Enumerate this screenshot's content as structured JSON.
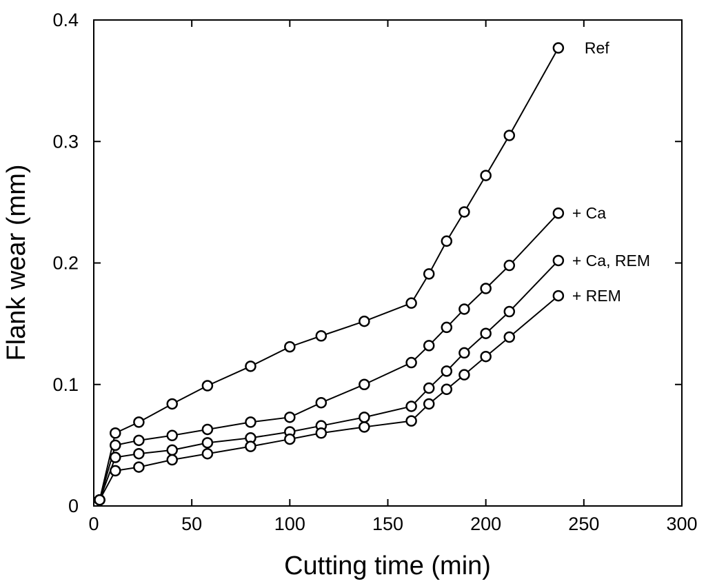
{
  "chart_data": {
    "type": "line",
    "title": "",
    "xlabel": "Cutting time (min)",
    "ylabel": "Flank wear (mm)",
    "xlim": [
      0,
      300
    ],
    "ylim": [
      0,
      0.4
    ],
    "xticks": [
      0,
      50,
      100,
      150,
      200,
      250,
      300
    ],
    "yticks": [
      0,
      0.1,
      0.2,
      0.3,
      0.4
    ],
    "xtick_labels": [
      "0",
      "50",
      "100",
      "150",
      "200",
      "250",
      "300"
    ],
    "ytick_labels": [
      "0",
      "0.1",
      "0.2",
      "0.3",
      "0.4"
    ],
    "grid": false,
    "marker": "open-circle",
    "series": [
      {
        "name": "Ref",
        "x": [
          3,
          11,
          23,
          40,
          58,
          80,
          100,
          116,
          138,
          162,
          171,
          180,
          189,
          200,
          212,
          237
        ],
        "y": [
          0.005,
          0.06,
          0.069,
          0.084,
          0.099,
          0.115,
          0.131,
          0.14,
          0.152,
          0.167,
          0.191,
          0.218,
          0.242,
          0.272,
          0.305,
          0.377
        ]
      },
      {
        "name": "+ Ca",
        "x": [
          3,
          11,
          23,
          40,
          58,
          80,
          100,
          116,
          138,
          162,
          171,
          180,
          189,
          200,
          212,
          237
        ],
        "y": [
          0.005,
          0.05,
          0.054,
          0.058,
          0.063,
          0.069,
          0.073,
          0.085,
          0.1,
          0.118,
          0.132,
          0.147,
          0.162,
          0.179,
          0.198,
          0.241
        ]
      },
      {
        "name": "+ Ca, REM",
        "x": [
          3,
          11,
          23,
          40,
          58,
          80,
          100,
          116,
          138,
          162,
          171,
          180,
          189,
          200,
          212,
          237
        ],
        "y": [
          0.005,
          0.04,
          0.043,
          0.046,
          0.052,
          0.056,
          0.061,
          0.066,
          0.073,
          0.082,
          0.097,
          0.111,
          0.126,
          0.142,
          0.16,
          0.202
        ]
      },
      {
        "name": "+ REM",
        "x": [
          3,
          11,
          23,
          40,
          58,
          80,
          100,
          116,
          138,
          162,
          171,
          180,
          189,
          200,
          212,
          237
        ],
        "y": [
          0.005,
          0.029,
          0.032,
          0.038,
          0.043,
          0.049,
          0.055,
          0.06,
          0.065,
          0.07,
          0.084,
          0.096,
          0.108,
          0.123,
          0.139,
          0.173
        ]
      }
    ]
  }
}
